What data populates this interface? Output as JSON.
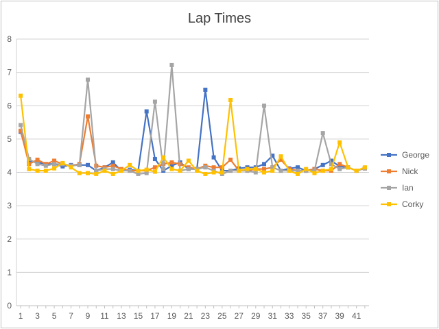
{
  "chart_data": {
    "type": "line",
    "title": "Lap Times",
    "xlabel": "",
    "ylabel": "",
    "ylim": [
      0,
      8
    ],
    "yticks": [
      0,
      1,
      2,
      3,
      4,
      5,
      6,
      7,
      8
    ],
    "x": [
      1,
      2,
      3,
      4,
      5,
      6,
      7,
      8,
      9,
      10,
      11,
      12,
      13,
      14,
      15,
      16,
      17,
      18,
      19,
      20,
      21,
      22,
      23,
      24,
      25,
      26,
      27,
      28,
      29,
      30,
      31,
      32,
      33,
      34,
      35,
      36,
      37,
      38,
      39,
      40,
      41,
      42
    ],
    "xtick_labels": [
      "1",
      "3",
      "5",
      "7",
      "9",
      "11",
      "13",
      "15",
      "17",
      "19",
      "21",
      "23",
      "25",
      "27",
      "29",
      "31",
      "33",
      "35",
      "37",
      "39",
      "41"
    ],
    "grid": "horizontal",
    "legend_position": "right",
    "series": [
      {
        "name": "George",
        "color": "#4472c4",
        "values": [
          5.22,
          4.35,
          4.3,
          4.25,
          4.25,
          4.18,
          4.22,
          4.22,
          4.22,
          4.05,
          4.15,
          4.3,
          4.05,
          4.08,
          4.05,
          5.83,
          4.4,
          4.05,
          4.2,
          4.3,
          4.1,
          4.1,
          6.48,
          4.45,
          4.05,
          4.05,
          4.12,
          4.15,
          4.15,
          4.25,
          4.5,
          4.05,
          4.12,
          4.15,
          4.05,
          4.1,
          4.22,
          4.35,
          4.18,
          4.15,
          4.05,
          4.12
        ]
      },
      {
        "name": "Nick",
        "color": "#ed7d31",
        "values": [
          5.25,
          4.25,
          4.38,
          4.25,
          4.35,
          4.25,
          4.2,
          4.25,
          5.68,
          4.2,
          4.15,
          4.2,
          4.1,
          4.05,
          4.05,
          4.05,
          4.15,
          4.25,
          4.3,
          4.25,
          4.15,
          4.1,
          4.2,
          4.15,
          4.15,
          4.38,
          4.05,
          4.05,
          4.1,
          4.1,
          4.15,
          4.38,
          4.1,
          4.05,
          4.05,
          4.1,
          4.05,
          4.05,
          4.25,
          4.15,
          4.05,
          4.12
        ]
      },
      {
        "name": "Ian",
        "color": "#a5a5a5",
        "values": [
          5.42,
          4.4,
          4.25,
          4.2,
          4.25,
          4.25,
          4.2,
          4.22,
          6.78,
          4.05,
          4.1,
          4.1,
          4.05,
          4.05,
          3.95,
          3.98,
          6.12,
          4.1,
          7.22,
          4.05,
          4.1,
          4.1,
          4.15,
          4.05,
          3.95,
          4.05,
          4.05,
          4.05,
          4.0,
          6.0,
          4.15,
          4.05,
          4.05,
          4.05,
          4.05,
          4.05,
          5.18,
          4.25,
          4.1,
          4.15,
          4.05,
          4.12
        ]
      },
      {
        "name": "Corky",
        "color": "#ffc000",
        "values": [
          6.3,
          4.1,
          4.05,
          4.05,
          4.12,
          4.28,
          4.15,
          3.98,
          3.98,
          3.95,
          4.05,
          3.95,
          4.05,
          4.22,
          4.05,
          4.08,
          4.02,
          4.45,
          4.1,
          4.05,
          4.35,
          4.05,
          3.95,
          4.0,
          4.0,
          6.17,
          4.05,
          4.1,
          4.1,
          4.0,
          4.05,
          4.48,
          4.05,
          3.95,
          4.1,
          3.98,
          4.05,
          4.1,
          4.9,
          4.15,
          4.05,
          4.15
        ]
      }
    ]
  }
}
